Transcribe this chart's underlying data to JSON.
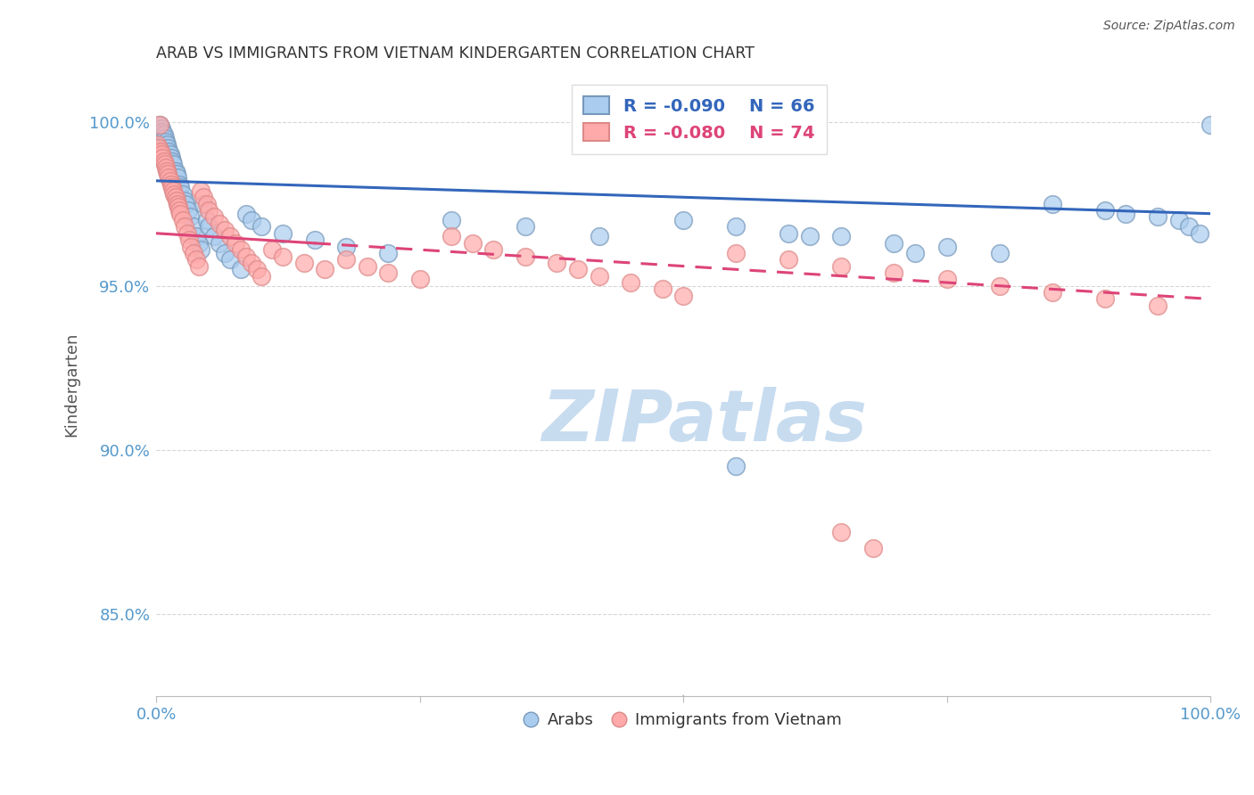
{
  "title": "ARAB VS IMMIGRANTS FROM VIETNAM KINDERGARTEN CORRELATION CHART",
  "source": "Source: ZipAtlas.com",
  "ylabel": "Kindergarten",
  "ytick_labels": [
    "100.0%",
    "95.0%",
    "90.0%",
    "85.0%"
  ],
  "ytick_values": [
    1.0,
    0.95,
    0.9,
    0.85
  ],
  "xlim": [
    0.0,
    1.0
  ],
  "ylim": [
    0.825,
    1.015
  ],
  "watermark": "ZIPatlas",
  "legend_blue_r": "R = -0.090",
  "legend_blue_n": "N = 66",
  "legend_pink_r": "R = -0.080",
  "legend_pink_n": "N = 74",
  "legend_label_blue": "Arabs",
  "legend_label_pink": "Immigrants from Vietnam",
  "blue_color": "#AACCEE",
  "pink_color": "#FFAAAA",
  "blue_edge_color": "#7799BB",
  "pink_edge_color": "#DD8888",
  "line_blue_color": "#3366BB",
  "line_pink_color": "#DD4477",
  "blue_scatter_x": [
    0.001,
    0.002,
    0.003,
    0.004,
    0.005,
    0.006,
    0.007,
    0.008,
    0.009,
    0.01,
    0.011,
    0.012,
    0.013,
    0.014,
    0.015,
    0.016,
    0.018,
    0.019,
    0.02,
    0.022,
    0.023,
    0.025,
    0.027,
    0.028,
    0.03,
    0.032,
    0.035,
    0.038,
    0.04,
    0.042,
    0.045,
    0.048,
    0.05,
    0.055,
    0.06,
    0.065,
    0.07,
    0.08,
    0.085,
    0.09,
    0.1,
    0.12,
    0.15,
    0.18,
    0.22,
    0.28,
    0.35,
    0.42,
    0.5,
    0.55,
    0.6,
    0.65,
    0.7,
    0.75,
    0.8,
    0.85,
    0.9,
    0.92,
    0.95,
    0.97,
    0.98,
    0.99,
    1.0,
    0.55,
    0.62,
    0.72
  ],
  "blue_scatter_y": [
    0.998,
    0.997,
    0.999,
    0.996,
    0.998,
    0.997,
    0.996,
    0.995,
    0.994,
    0.993,
    0.992,
    0.991,
    0.99,
    0.989,
    0.988,
    0.987,
    0.985,
    0.984,
    0.983,
    0.981,
    0.98,
    0.978,
    0.976,
    0.975,
    0.973,
    0.971,
    0.968,
    0.965,
    0.963,
    0.961,
    0.975,
    0.97,
    0.968,
    0.965,
    0.963,
    0.96,
    0.958,
    0.955,
    0.972,
    0.97,
    0.968,
    0.966,
    0.964,
    0.962,
    0.96,
    0.97,
    0.968,
    0.965,
    0.97,
    0.968,
    0.966,
    0.965,
    0.963,
    0.962,
    0.96,
    0.975,
    0.973,
    0.972,
    0.971,
    0.97,
    0.968,
    0.966,
    0.999,
    0.895,
    0.965,
    0.96
  ],
  "pink_scatter_x": [
    0.001,
    0.002,
    0.003,
    0.004,
    0.005,
    0.006,
    0.007,
    0.008,
    0.009,
    0.01,
    0.011,
    0.012,
    0.013,
    0.014,
    0.015,
    0.016,
    0.017,
    0.018,
    0.019,
    0.02,
    0.021,
    0.022,
    0.023,
    0.025,
    0.027,
    0.029,
    0.031,
    0.033,
    0.035,
    0.038,
    0.04,
    0.042,
    0.045,
    0.048,
    0.05,
    0.055,
    0.06,
    0.065,
    0.07,
    0.075,
    0.08,
    0.085,
    0.09,
    0.095,
    0.1,
    0.11,
    0.12,
    0.14,
    0.16,
    0.18,
    0.2,
    0.22,
    0.25,
    0.28,
    0.3,
    0.32,
    0.35,
    0.38,
    0.4,
    0.42,
    0.45,
    0.48,
    0.5,
    0.55,
    0.6,
    0.65,
    0.7,
    0.75,
    0.8,
    0.85,
    0.9,
    0.95,
    0.65,
    0.68
  ],
  "pink_scatter_y": [
    0.993,
    0.992,
    0.999,
    0.991,
    0.99,
    0.989,
    0.988,
    0.987,
    0.986,
    0.985,
    0.984,
    0.983,
    0.982,
    0.981,
    0.98,
    0.979,
    0.978,
    0.977,
    0.976,
    0.975,
    0.974,
    0.973,
    0.972,
    0.97,
    0.968,
    0.966,
    0.964,
    0.962,
    0.96,
    0.958,
    0.956,
    0.979,
    0.977,
    0.975,
    0.973,
    0.971,
    0.969,
    0.967,
    0.965,
    0.963,
    0.961,
    0.959,
    0.957,
    0.955,
    0.953,
    0.961,
    0.959,
    0.957,
    0.955,
    0.958,
    0.956,
    0.954,
    0.952,
    0.965,
    0.963,
    0.961,
    0.959,
    0.957,
    0.955,
    0.953,
    0.951,
    0.949,
    0.947,
    0.96,
    0.958,
    0.956,
    0.954,
    0.952,
    0.95,
    0.948,
    0.946,
    0.944,
    0.875,
    0.87
  ],
  "blue_line_y_start": 0.982,
  "blue_line_y_end": 0.972,
  "pink_line_y_start": 0.966,
  "pink_line_y_end": 0.946,
  "pink_line_dashed_start_x": 0.15,
  "title_color": "#333333",
  "axis_label_color": "#5599CC",
  "grid_color": "#CCCCCC",
  "background_color": "#FFFFFF"
}
